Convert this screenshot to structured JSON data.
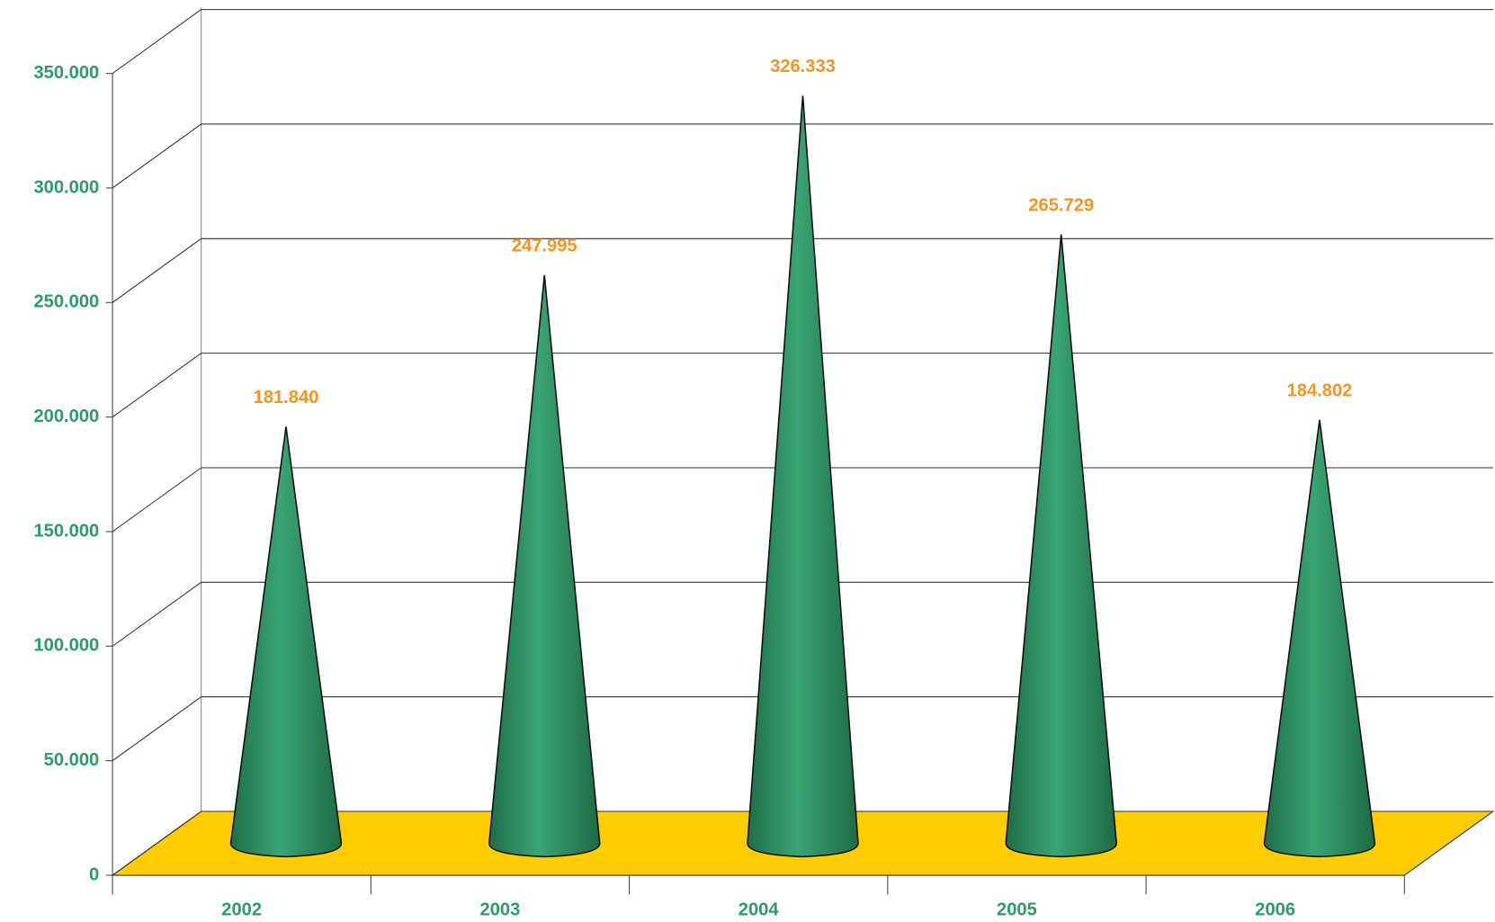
{
  "chart_data": {
    "type": "cone",
    "categories": [
      "2002",
      "2003",
      "2004",
      "2005",
      "2006"
    ],
    "values": [
      181840,
      247995,
      326333,
      265729,
      184802
    ],
    "value_labels": [
      "181.840",
      "247.995",
      "326.333",
      "265.729",
      "184.802"
    ],
    "color": "#2e8b5e",
    "floor_color": "#ffcc00",
    "label_color": "#f7941d",
    "ylim": [
      0,
      350000
    ],
    "yticks": [
      0,
      {
        "value": 50000,
        "label": "50.000"
      },
      {
        "value": 100000,
        "label": "100.000"
      },
      {
        "value": 150000,
        "label": "150.000"
      },
      {
        "value": 200000,
        "label": "200.000"
      },
      {
        "value": 250000,
        "label": "250.000"
      },
      {
        "value": 300000,
        "label": "300.000"
      },
      {
        "value": 350000,
        "label": "350.000"
      }
    ],
    "grid": true
  }
}
